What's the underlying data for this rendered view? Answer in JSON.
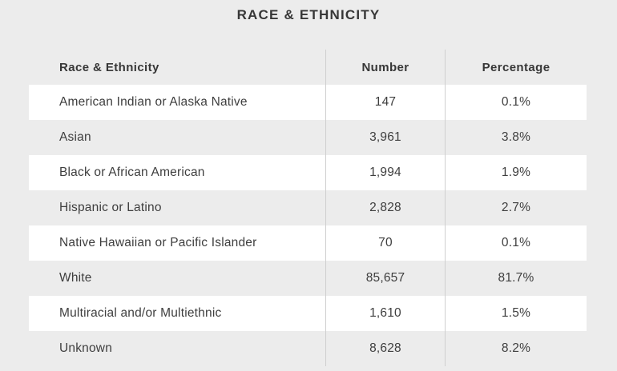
{
  "title": "RACE & ETHNICITY",
  "chart_data": {
    "type": "table",
    "title": "RACE & ETHNICITY",
    "columns": [
      "Race & Ethnicity",
      "Number",
      "Percentage"
    ],
    "rows": [
      {
        "label": "American Indian or Alaska Native",
        "number": "147",
        "percentage": "0.1%"
      },
      {
        "label": "Asian",
        "number": "3,961",
        "percentage": "3.8%"
      },
      {
        "label": "Black or African American",
        "number": "1,994",
        "percentage": "1.9%"
      },
      {
        "label": "Hispanic or Latino",
        "number": "2,828",
        "percentage": "2.7%"
      },
      {
        "label": "Native Hawaiian or Pacific Islander",
        "number": "70",
        "percentage": "0.1%"
      },
      {
        "label": "White",
        "number": "85,657",
        "percentage": "81.7%"
      },
      {
        "label": "Multiracial and/or Multiethnic",
        "number": "1,610",
        "percentage": "1.5%"
      },
      {
        "label": "Unknown",
        "number": "8,628",
        "percentage": "8.2%"
      }
    ],
    "numbers_numeric": [
      147,
      3961,
      1994,
      2828,
      70,
      85657,
      1610,
      8628
    ],
    "percentages_numeric": [
      0.1,
      3.8,
      1.9,
      2.7,
      0.1,
      81.7,
      1.5,
      8.2
    ]
  },
  "colors": {
    "page_background": "#ececec",
    "row_stripe_white": "#ffffff",
    "row_stripe_gray": "#ececec",
    "column_divider": "#cfcfcf",
    "body_text": "#3e3e3e",
    "heading_text": "#373737"
  }
}
